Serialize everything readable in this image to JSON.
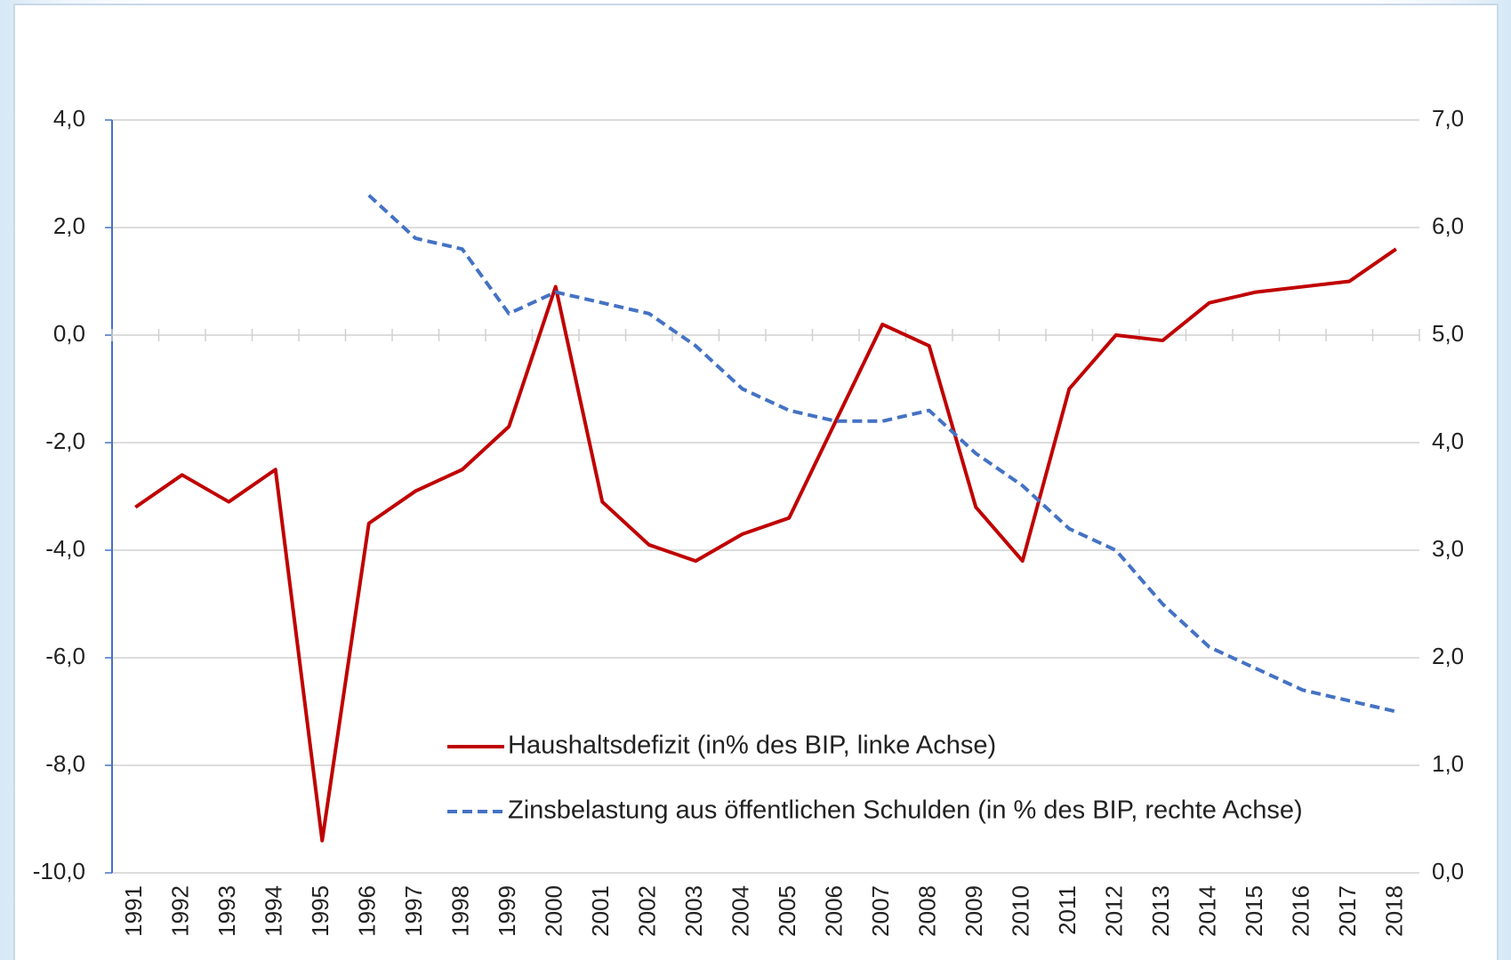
{
  "chart_data": {
    "type": "line",
    "categories": [
      "1991",
      "1992",
      "1993",
      "1994",
      "1995",
      "1996",
      "1997",
      "1998",
      "1999",
      "2000",
      "2001",
      "2002",
      "2003",
      "2004",
      "2005",
      "2006",
      "2007",
      "2008",
      "2009",
      "2010",
      "2011",
      "2012",
      "2013",
      "2014",
      "2015",
      "2016",
      "2017",
      "2018"
    ],
    "series": [
      {
        "name": "Haushaltsdefizit (in% des BIP, linke Achse)",
        "color": "#c00000",
        "dash": false,
        "values": [
          -3.2,
          -2.6,
          -3.1,
          -2.5,
          -9.4,
          -3.5,
          -2.9,
          -2.5,
          -1.7,
          0.9,
          -3.1,
          -3.9,
          -4.2,
          -3.7,
          -3.4,
          -1.6,
          0.2,
          -0.2,
          -3.2,
          -4.2,
          -1.0,
          0.0,
          -0.1,
          0.6,
          0.8,
          0.9,
          1.0,
          1.6
        ]
      },
      {
        "name": "Zinsbelastung aus öffentlichen Schulden (in % des BIP, rechte Achse)",
        "color": "#4472c4",
        "dash": true,
        "axis": "y2",
        "values": [
          null,
          null,
          null,
          null,
          null,
          6.3,
          5.9,
          5.8,
          5.2,
          5.4,
          5.3,
          5.2,
          4.9,
          4.5,
          4.3,
          4.2,
          4.2,
          4.3,
          3.9,
          3.6,
          3.2,
          3.0,
          2.5,
          2.1,
          1.9,
          1.7,
          1.6,
          1.5
        ]
      }
    ],
    "ylim": [
      -10,
      4
    ],
    "yticks": [
      {
        "value": -10,
        "label": "-10,0"
      },
      {
        "value": -8,
        "label": "-8,0"
      },
      {
        "value": -6,
        "label": "-6,0"
      },
      {
        "value": -4,
        "label": "-4,0"
      },
      {
        "value": -2,
        "label": "-2,0"
      },
      {
        "value": 0,
        "label": "0,0"
      },
      {
        "value": 2,
        "label": "2,0"
      },
      {
        "value": 4,
        "label": "4,0"
      }
    ],
    "y2lim": [
      0,
      7
    ],
    "y2ticks": [
      {
        "value": 0,
        "label": "0,0"
      },
      {
        "value": 1,
        "label": "1,0"
      },
      {
        "value": 2,
        "label": "2,0"
      },
      {
        "value": 3,
        "label": "3,0"
      },
      {
        "value": 4,
        "label": "4,0"
      },
      {
        "value": 5,
        "label": "5,0"
      },
      {
        "value": 6,
        "label": "6,0"
      },
      {
        "value": 7,
        "label": "7,0"
      }
    ],
    "grid": true
  }
}
